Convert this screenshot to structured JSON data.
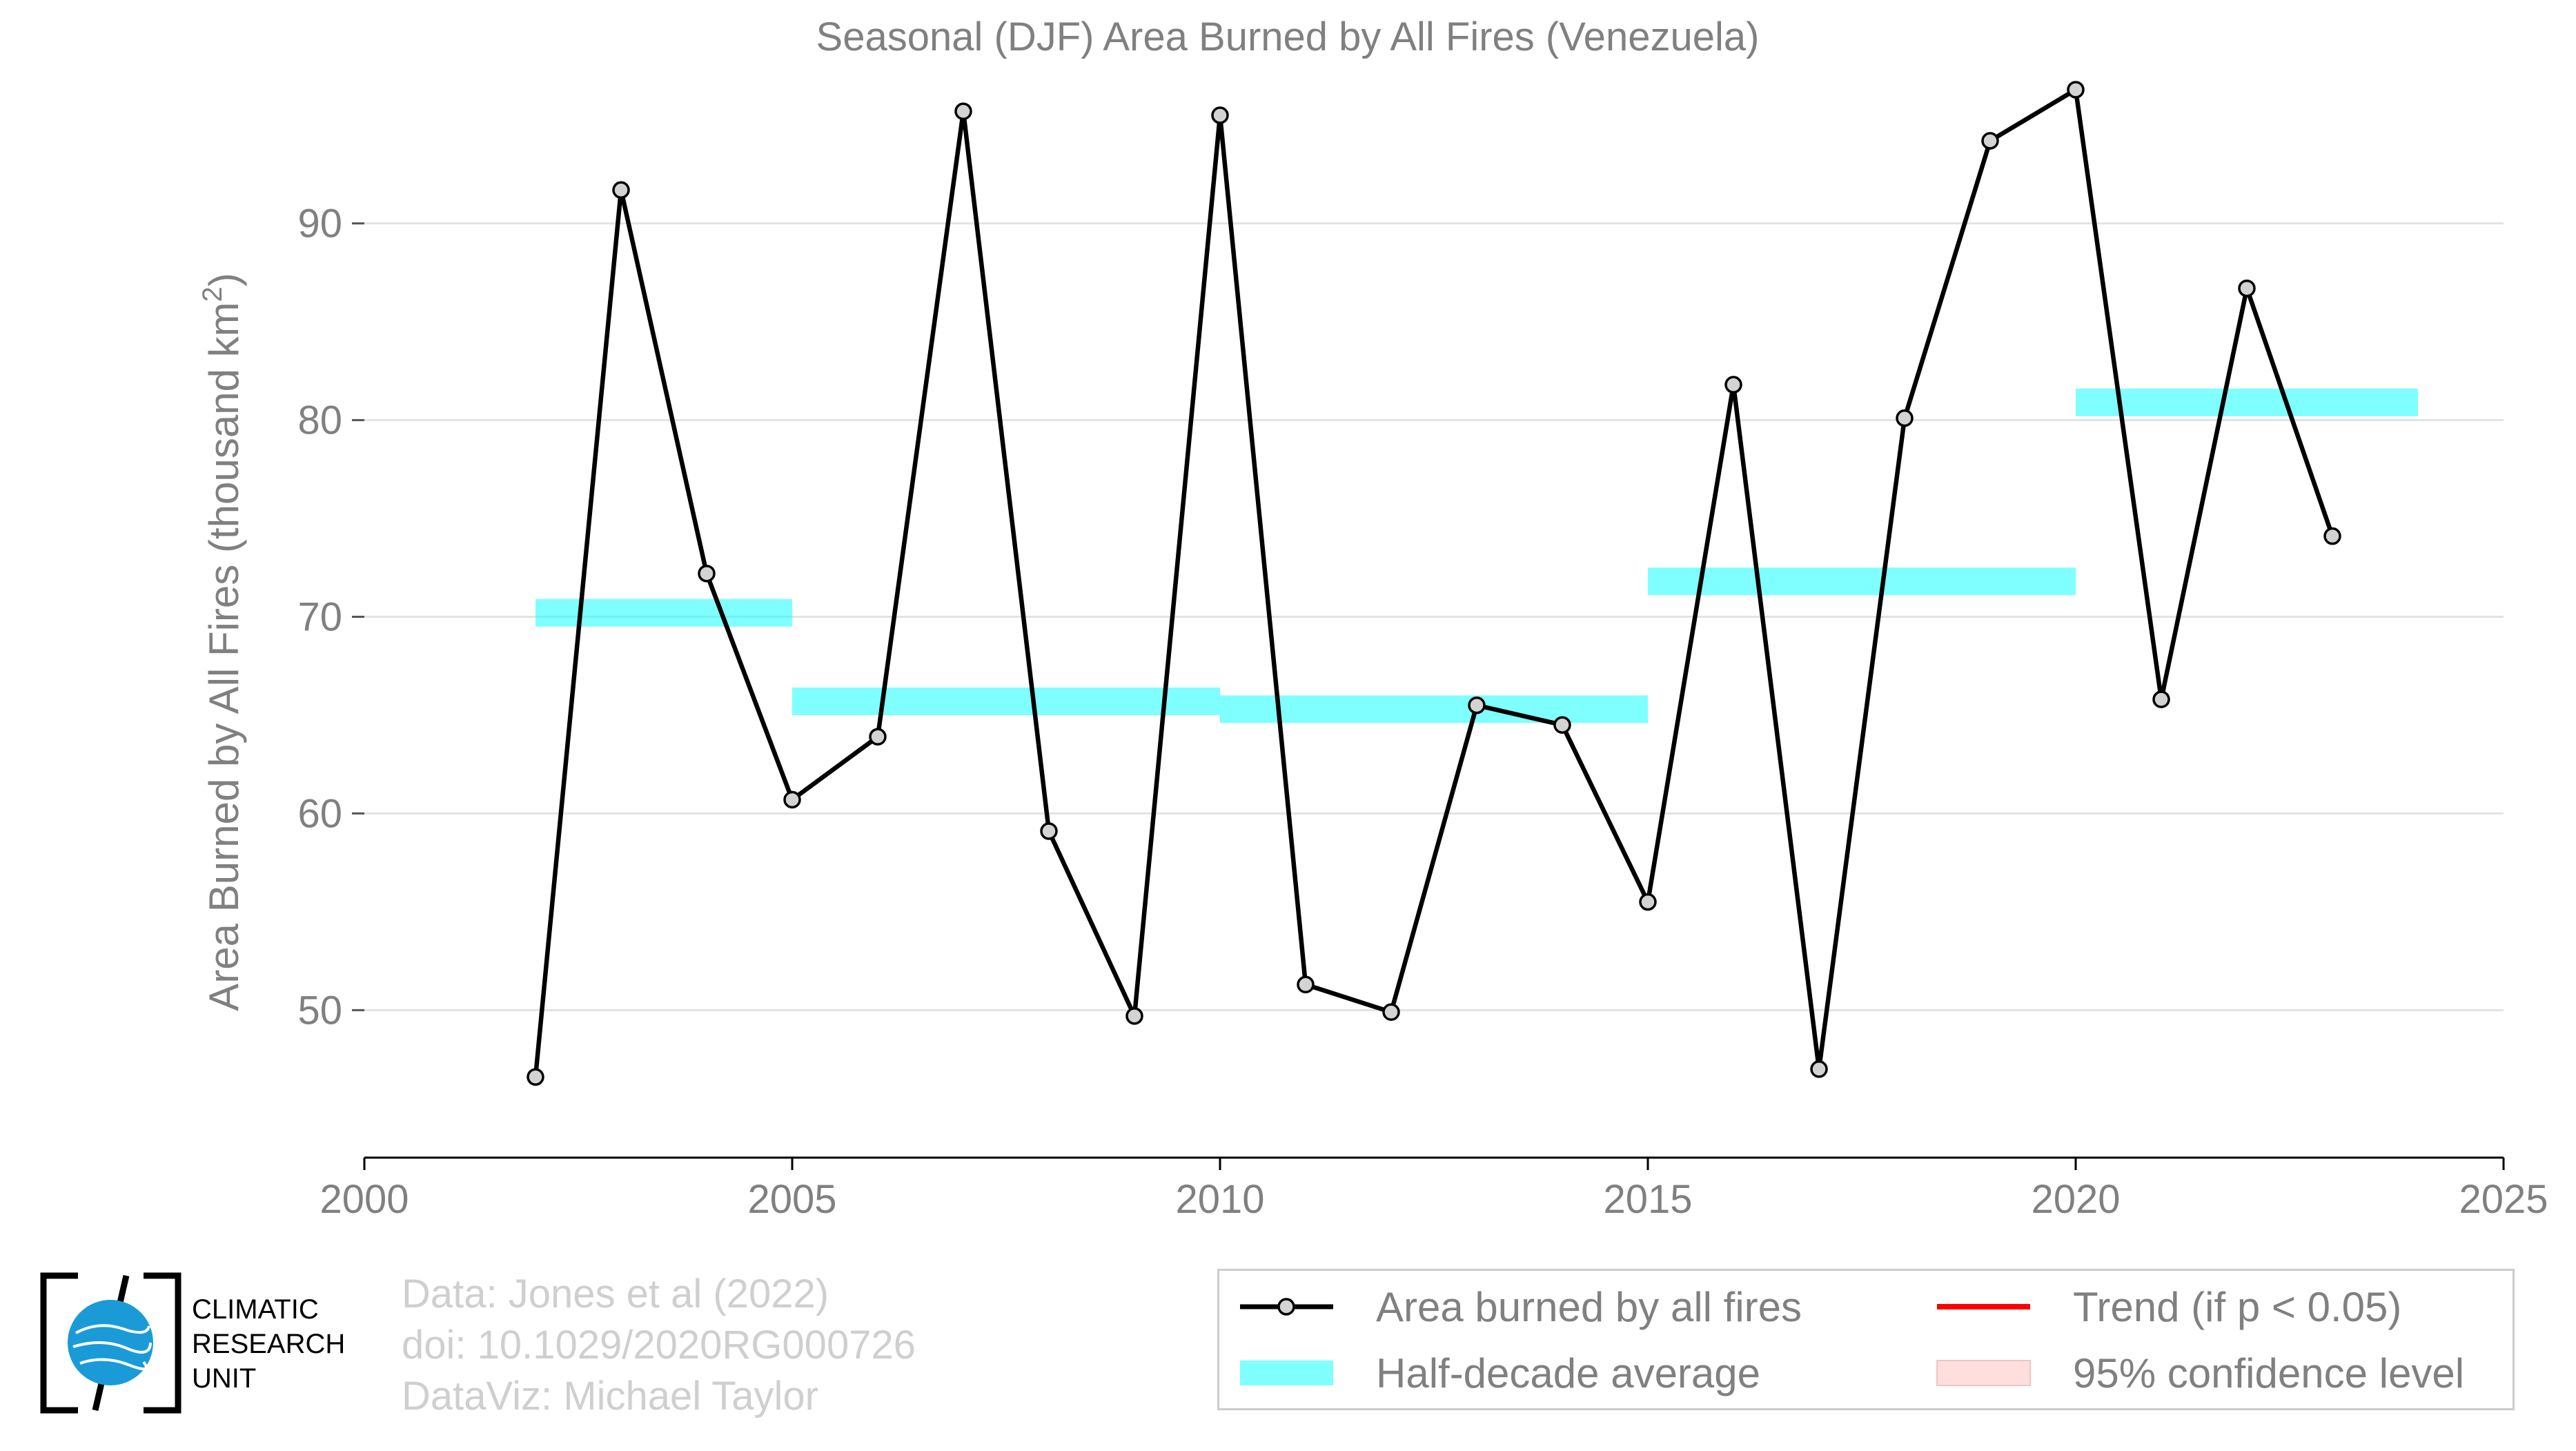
{
  "chart_data": {
    "type": "line",
    "title": "Seasonal (DJF) Area Burned by All Fires (Venezuela)",
    "ylabel_main": "Area Burned by All Fires (thousand km",
    "ylabel_sup": "2",
    "ylabel_close": ")",
    "xlim": [
      2000,
      2025
    ],
    "ylim": [
      42.5,
      97.5
    ],
    "xticks": [
      2000,
      2005,
      2010,
      2015,
      2020,
      2025
    ],
    "yticks": [
      50,
      60,
      70,
      80,
      90
    ],
    "grid": true,
    "series": [
      {
        "name": "Area burned by all fires",
        "color": "#000000",
        "marker_fill": "#d3d3d3",
        "x": [
          2002,
          2003,
          2004,
          2005,
          2006,
          2007,
          2008,
          2009,
          2010,
          2011,
          2012,
          2013,
          2014,
          2015,
          2016,
          2017,
          2018,
          2019,
          2020,
          2021,
          2022,
          2023
        ],
        "y": [
          46.6,
          91.7,
          72.2,
          60.7,
          63.9,
          95.7,
          59.1,
          49.7,
          95.5,
          51.3,
          49.9,
          65.5,
          64.5,
          55.5,
          81.8,
          47.0,
          80.1,
          94.2,
          96.8,
          65.8,
          86.7,
          74.1
        ]
      }
    ],
    "half_decade_average": {
      "name": "Half-decade average",
      "color": "#00ffff",
      "segments": [
        {
          "x0": 2002,
          "x1": 2005,
          "y": 70.2
        },
        {
          "x0": 2005,
          "x1": 2010,
          "y": 65.7
        },
        {
          "x0": 2010,
          "x1": 2015,
          "y": 65.3
        },
        {
          "x0": 2015,
          "x1": 2020,
          "y": 71.8
        },
        {
          "x0": 2020,
          "x1": 2024,
          "y": 80.9
        }
      ]
    },
    "legend": {
      "placement": "bottom-right",
      "items": [
        {
          "label": "Area burned by all fires",
          "kind": "line-marker",
          "color": "#000000"
        },
        {
          "label": "Trend (if p < 0.05)",
          "kind": "line",
          "color": "#ff0000"
        },
        {
          "label": "Half-decade average",
          "kind": "band",
          "color": "#00ffff"
        },
        {
          "label": "95% confidence level",
          "kind": "fill",
          "color": "#ffdede"
        }
      ]
    }
  },
  "credits": {
    "line1": "Data: Jones et al (2022)",
    "line2": "doi: 10.1029/2020RG000726",
    "line3": "DataViz: Michael Taylor"
  },
  "logo": {
    "line1": "CLIMATIC",
    "line2": "RESEARCH",
    "line3": "UNIT"
  }
}
